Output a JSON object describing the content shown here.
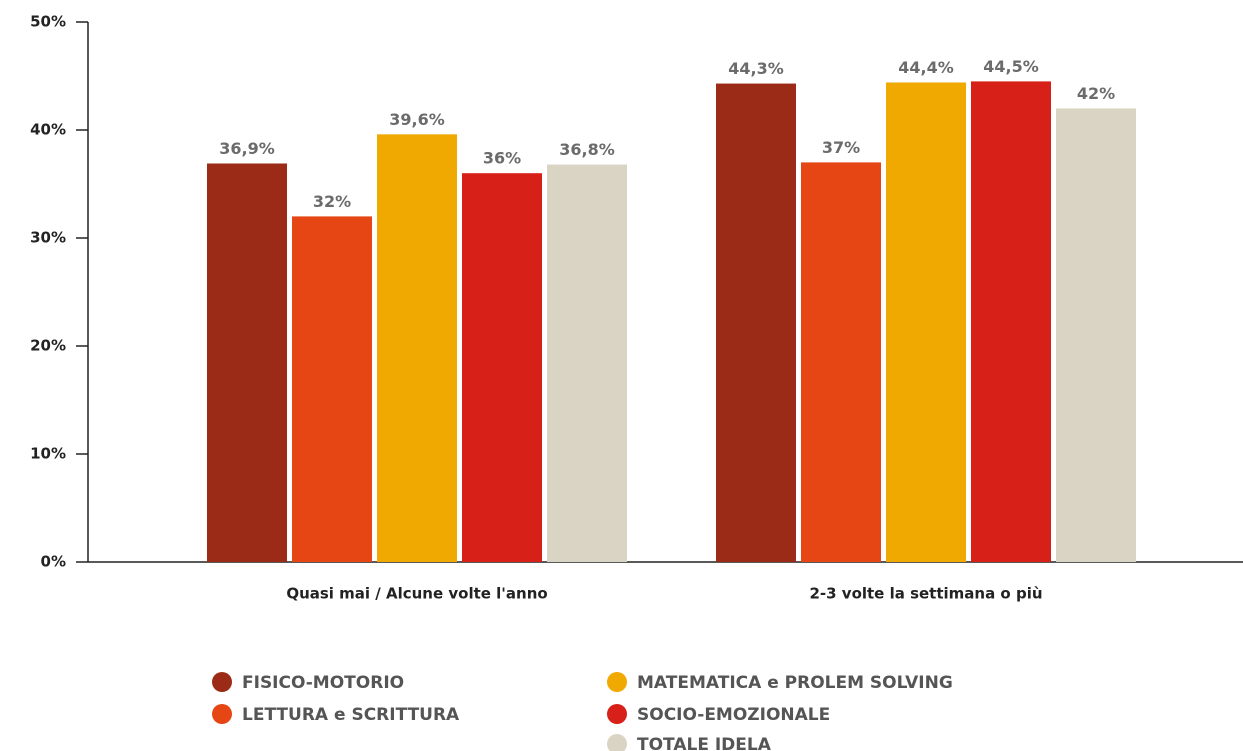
{
  "chart_data": {
    "type": "bar",
    "categories": [
      "Quasi mai / Alcune volte l'anno",
      "2-3 volte la settimana o più"
    ],
    "series": [
      {
        "name": "FISICO-MOTORIO",
        "color": "#9b2b16",
        "values": [
          36.9,
          44.3
        ],
        "value_labels": [
          "36,9%",
          "44,3%"
        ]
      },
      {
        "name": "LETTURA e SCRITTURA",
        "color": "#e64514",
        "values": [
          32,
          37
        ],
        "value_labels": [
          "32%",
          "37%"
        ]
      },
      {
        "name": "MATEMATICA e PROLEM SOLVING",
        "color": "#f0a900",
        "values": [
          39.6,
          44.4
        ],
        "value_labels": [
          "39,6%",
          "44,4%"
        ]
      },
      {
        "name": "SOCIO-EMOZIONALE",
        "color": "#d72017",
        "values": [
          36,
          44.5
        ],
        "value_labels": [
          "36%",
          "44,5%"
        ]
      },
      {
        "name": "TOTALE IDELA",
        "color": "#dad4c5",
        "values": [
          36.8,
          42
        ],
        "value_labels": [
          "36,8%",
          "42%"
        ]
      }
    ],
    "ylim": [
      0,
      50
    ],
    "yticks": [
      {
        "value": 0,
        "label": "0%"
      },
      {
        "value": 10,
        "label": "10%"
      },
      {
        "value": 20,
        "label": "20%"
      },
      {
        "value": 30,
        "label": "30%"
      },
      {
        "value": 40,
        "label": "40%"
      },
      {
        "value": 50,
        "label": "50%"
      }
    ],
    "grid": false
  }
}
